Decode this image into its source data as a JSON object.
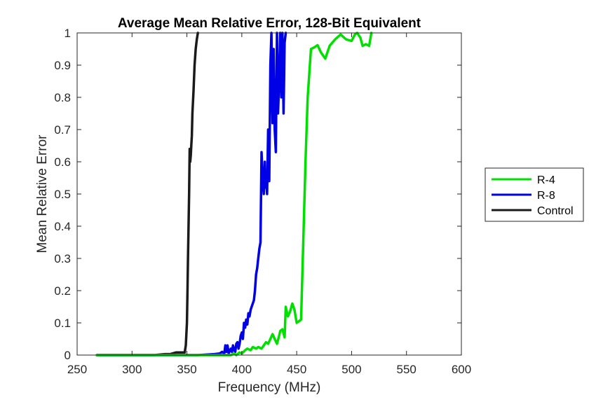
{
  "chart_data": {
    "type": "line",
    "title": "Average Mean Relative Error, 128-Bit Equivalent",
    "xlabel": "Frequency (MHz)",
    "ylabel": "Mean Relative Error",
    "xlim": [
      250,
      600
    ],
    "ylim": [
      0,
      1
    ],
    "xticks": [
      250,
      300,
      350,
      400,
      450,
      500,
      550,
      600
    ],
    "yticks": [
      0,
      0.1,
      0.2,
      0.3,
      0.4,
      0.5,
      0.6,
      0.7,
      0.8,
      0.9,
      1
    ],
    "ytick_labels": [
      "0",
      "0.1",
      "0.2",
      "0.3",
      "0.4",
      "0.5",
      "0.6",
      "0.7",
      "0.8",
      "0.9",
      "1"
    ],
    "grid": false,
    "legend_position": "outside-right",
    "series": [
      {
        "name": "R-4",
        "color": "#00e000",
        "x": [
          268,
          300,
          330,
          350,
          370,
          385,
          390,
          393,
          395,
          398,
          400,
          403,
          405,
          408,
          410,
          413,
          415,
          418,
          420,
          422,
          424,
          426,
          428,
          430,
          432,
          434,
          435,
          437,
          439,
          440,
          442,
          444,
          446,
          448,
          450,
          452,
          454,
          456,
          458,
          460,
          463,
          466,
          469,
          472,
          476,
          480,
          485,
          490,
          495,
          500,
          503,
          505,
          508,
          510,
          513,
          516,
          518
        ],
        "y": [
          0,
          0,
          0,
          0,
          0,
          0,
          0,
          0.005,
          0,
          0.008,
          0.005,
          0.015,
          0.02,
          0.015,
          0.025,
          0.02,
          0.025,
          0.02,
          0.03,
          0.04,
          0.035,
          0.05,
          0.065,
          0.05,
          0.035,
          0.06,
          0.075,
          0.08,
          0.055,
          0.15,
          0.12,
          0.135,
          0.16,
          0.14,
          0.1,
          0.105,
          0.11,
          0.35,
          0.6,
          0.8,
          0.95,
          0.955,
          0.962,
          0.94,
          0.92,
          0.96,
          0.98,
          0.995,
          0.98,
          0.975,
          0.995,
          1.0,
          0.985,
          0.96,
          0.965,
          0.96,
          1.0
        ]
      },
      {
        "name": "R-8",
        "color": "#0000e6",
        "x": [
          268,
          300,
          330,
          360,
          375,
          380,
          382,
          384,
          385,
          386,
          387,
          388,
          390,
          391,
          392,
          393,
          394,
          395,
          396,
          397,
          398,
          399,
          400,
          401,
          402,
          403,
          404,
          405,
          406,
          407,
          408,
          409,
          410,
          411,
          412,
          413,
          414,
          415,
          416,
          417,
          418,
          419,
          420,
          421,
          421.5,
          422,
          423,
          424,
          425,
          426,
          427,
          428,
          429,
          430,
          431,
          432,
          433,
          434,
          435,
          436,
          437,
          438,
          439,
          440
        ],
        "y": [
          0,
          0,
          0,
          0,
          0.003,
          0.005,
          0.01,
          0.005,
          0.03,
          0.01,
          0.03,
          0.005,
          0.02,
          0.01,
          0.03,
          0.015,
          0.01,
          0.035,
          0.04,
          0.02,
          0.035,
          0.06,
          0.07,
          0.05,
          0.1,
          0.085,
          0.11,
          0.095,
          0.13,
          0.12,
          0.14,
          0.15,
          0.16,
          0.17,
          0.2,
          0.25,
          0.27,
          0.3,
          0.33,
          0.35,
          0.63,
          0.55,
          0.5,
          0.6,
          0.52,
          0.55,
          0.5,
          0.7,
          0.54,
          0.9,
          1.0,
          0.72,
          0.95,
          0.7,
          0.63,
          1.0,
          0.75,
          0.85,
          1.0,
          0.8,
          1.0,
          0.75,
          0.97,
          1.0
        ]
      },
      {
        "name": "Control",
        "color": "#1a1a1a",
        "x": [
          268,
          280,
          300,
          320,
          330,
          335,
          340,
          345,
          348,
          349,
          350,
          350.5,
          351,
          351.5,
          352,
          352.5,
          353,
          353.5,
          354,
          354.5,
          355,
          356,
          357,
          358,
          359,
          360
        ],
        "y": [
          0,
          0,
          0,
          0,
          0.003,
          0.003,
          0.008,
          0.008,
          0.008,
          0.03,
          0.1,
          0.2,
          0.3,
          0.4,
          0.5,
          0.64,
          0.6,
          0.62,
          0.65,
          0.68,
          0.75,
          0.82,
          0.9,
          0.95,
          0.98,
          1.0
        ]
      }
    ]
  }
}
